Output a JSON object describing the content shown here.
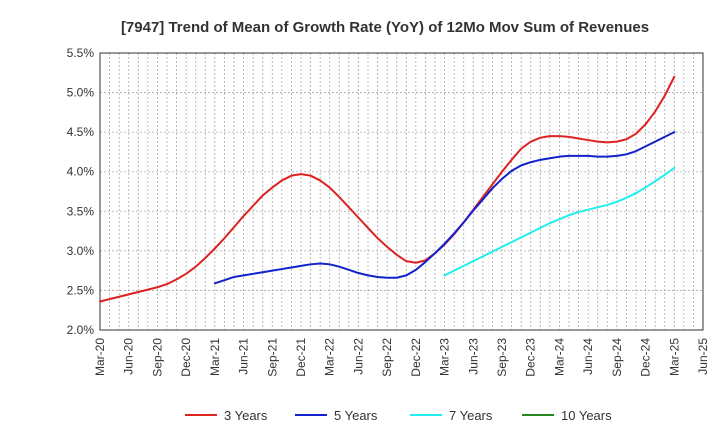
{
  "chart_data": {
    "type": "line",
    "title": "[7947]  Trend of Mean of Growth Rate (YoY) of 12Mo Mov Sum of Revenues",
    "xlabel": "",
    "ylabel": "",
    "ylim": [
      2.0,
      5.5
    ],
    "y_ticks": [
      2.0,
      2.5,
      3.0,
      3.5,
      4.0,
      4.5,
      5.0,
      5.5
    ],
    "y_tick_labels": [
      "2.0%",
      "2.5%",
      "3.0%",
      "3.5%",
      "4.0%",
      "4.5%",
      "5.0%",
      "5.5%"
    ],
    "x_labels": [
      "Mar-20",
      "Jun-20",
      "Sep-20",
      "Dec-20",
      "Mar-21",
      "Jun-21",
      "Sep-21",
      "Dec-21",
      "Mar-22",
      "Jun-22",
      "Sep-22",
      "Dec-22",
      "Mar-23",
      "Jun-23",
      "Sep-23",
      "Dec-23",
      "Mar-24",
      "Jun-24",
      "Sep-24",
      "Dec-24",
      "Mar-25",
      "Jun-25"
    ],
    "grid": true,
    "legend_position": "bottom",
    "series": [
      {
        "name": "3 Years",
        "color": "#dd2222",
        "start_month_index": 0,
        "values": [
          2.36,
          2.39,
          2.42,
          2.45,
          2.48,
          2.51,
          2.54,
          2.58,
          2.64,
          2.71,
          2.8,
          2.91,
          3.03,
          3.16,
          3.3,
          3.44,
          3.57,
          3.7,
          3.8,
          3.89,
          3.95,
          3.97,
          3.95,
          3.89,
          3.8,
          3.68,
          3.55,
          3.42,
          3.29,
          3.16,
          3.05,
          2.95,
          2.87,
          2.85,
          2.88,
          2.97,
          3.08,
          3.21,
          3.36,
          3.52,
          3.68,
          3.84,
          4.0,
          4.15,
          4.29,
          4.38,
          4.43,
          4.45,
          4.45,
          4.44,
          4.42,
          4.4,
          4.38,
          4.37,
          4.38,
          4.41,
          4.48,
          4.6,
          4.76,
          4.96,
          5.2
        ]
      },
      {
        "name": "5 Years",
        "color": "#1122cc",
        "start_month_index": 12,
        "values": [
          2.59,
          2.63,
          2.67,
          2.69,
          2.71,
          2.73,
          2.75,
          2.77,
          2.79,
          2.81,
          2.83,
          2.84,
          2.83,
          2.8,
          2.76,
          2.72,
          2.69,
          2.67,
          2.66,
          2.66,
          2.69,
          2.76,
          2.86,
          2.97,
          3.09,
          3.22,
          3.36,
          3.51,
          3.65,
          3.79,
          3.91,
          4.01,
          4.08,
          4.12,
          4.15,
          4.17,
          4.19,
          4.2,
          4.2,
          4.2,
          4.19,
          4.19,
          4.2,
          4.22,
          4.26,
          4.32,
          4.38,
          4.44,
          4.5
        ]
      },
      {
        "name": "7 Years",
        "color": "#22eeee",
        "start_month_index": 36,
        "values": [
          2.69,
          2.75,
          2.81,
          2.87,
          2.93,
          2.99,
          3.05,
          3.11,
          3.17,
          3.23,
          3.29,
          3.35,
          3.4,
          3.45,
          3.49,
          3.52,
          3.55,
          3.58,
          3.62,
          3.67,
          3.73,
          3.8,
          3.88,
          3.96,
          4.05
        ]
      },
      {
        "name": "10 Years",
        "color": "#228822",
        "start_month_index": 0,
        "values": []
      }
    ]
  }
}
